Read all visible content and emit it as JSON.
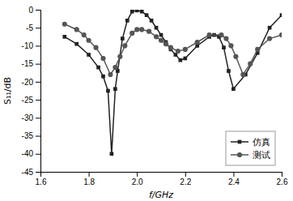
{
  "chart_data": {
    "type": "line",
    "xlabel": "f/GHz",
    "ylabel": "S₁₁/dB",
    "xlim": [
      1.6,
      2.6
    ],
    "ylim": [
      -45,
      0
    ],
    "xticks": [
      1.6,
      1.8,
      {
        "value": 2.0,
        "label": "2.0"
      },
      2.2,
      2.4,
      2.6
    ],
    "yticks": [
      0,
      -5,
      -10,
      -15,
      -20,
      -25,
      -30,
      -35,
      -40,
      -45
    ],
    "grid": false,
    "legend": "lower right",
    "series": [
      {
        "name": "仿真",
        "color": "#222222",
        "marker": "square",
        "x": [
          1.7,
          1.75,
          1.8,
          1.84,
          1.86,
          1.88,
          1.895,
          1.91,
          1.92,
          1.94,
          1.96,
          1.98,
          2.0,
          2.02,
          2.04,
          2.06,
          2.08,
          2.1,
          2.12,
          2.14,
          2.16,
          2.18,
          2.2,
          2.25,
          2.3,
          2.32,
          2.34,
          2.36,
          2.38,
          2.4,
          2.45,
          2.5,
          2.55,
          2.6
        ],
        "values": [
          -7.5,
          -9.5,
          -12.5,
          -16.0,
          -18.5,
          -22.5,
          -40.0,
          -22.0,
          -17.0,
          -8.0,
          -3.0,
          -0.5,
          -0.2,
          -0.5,
          -1.5,
          -3.0,
          -5.0,
          -7.0,
          -9.0,
          -11.0,
          -12.5,
          -14.0,
          -13.5,
          -10.0,
          -7.5,
          -7.0,
          -7.5,
          -10.5,
          -17.0,
          -22.0,
          -18.0,
          -12.0,
          -5.0,
          -1.5
        ]
      },
      {
        "name": "测试",
        "color": "#555555",
        "marker": "circle",
        "x": [
          1.7,
          1.75,
          1.78,
          1.8,
          1.83,
          1.86,
          1.89,
          1.91,
          1.93,
          1.95,
          1.98,
          2.0,
          2.02,
          2.05,
          2.08,
          2.1,
          2.12,
          2.14,
          2.17,
          2.2,
          2.25,
          2.3,
          2.35,
          2.37,
          2.39,
          2.41,
          2.44,
          2.47,
          2.5,
          2.55,
          2.6
        ],
        "values": [
          -4.0,
          -5.5,
          -7.0,
          -8.5,
          -10.5,
          -13.5,
          -18.0,
          -16.0,
          -13.0,
          -10.0,
          -6.5,
          -5.5,
          -5.5,
          -6.0,
          -7.5,
          -8.5,
          -9.5,
          -10.5,
          -11.5,
          -11.0,
          -9.0,
          -7.0,
          -7.0,
          -8.0,
          -10.0,
          -13.0,
          -18.0,
          -15.0,
          -11.0,
          -8.0,
          -7.0
        ]
      }
    ]
  }
}
